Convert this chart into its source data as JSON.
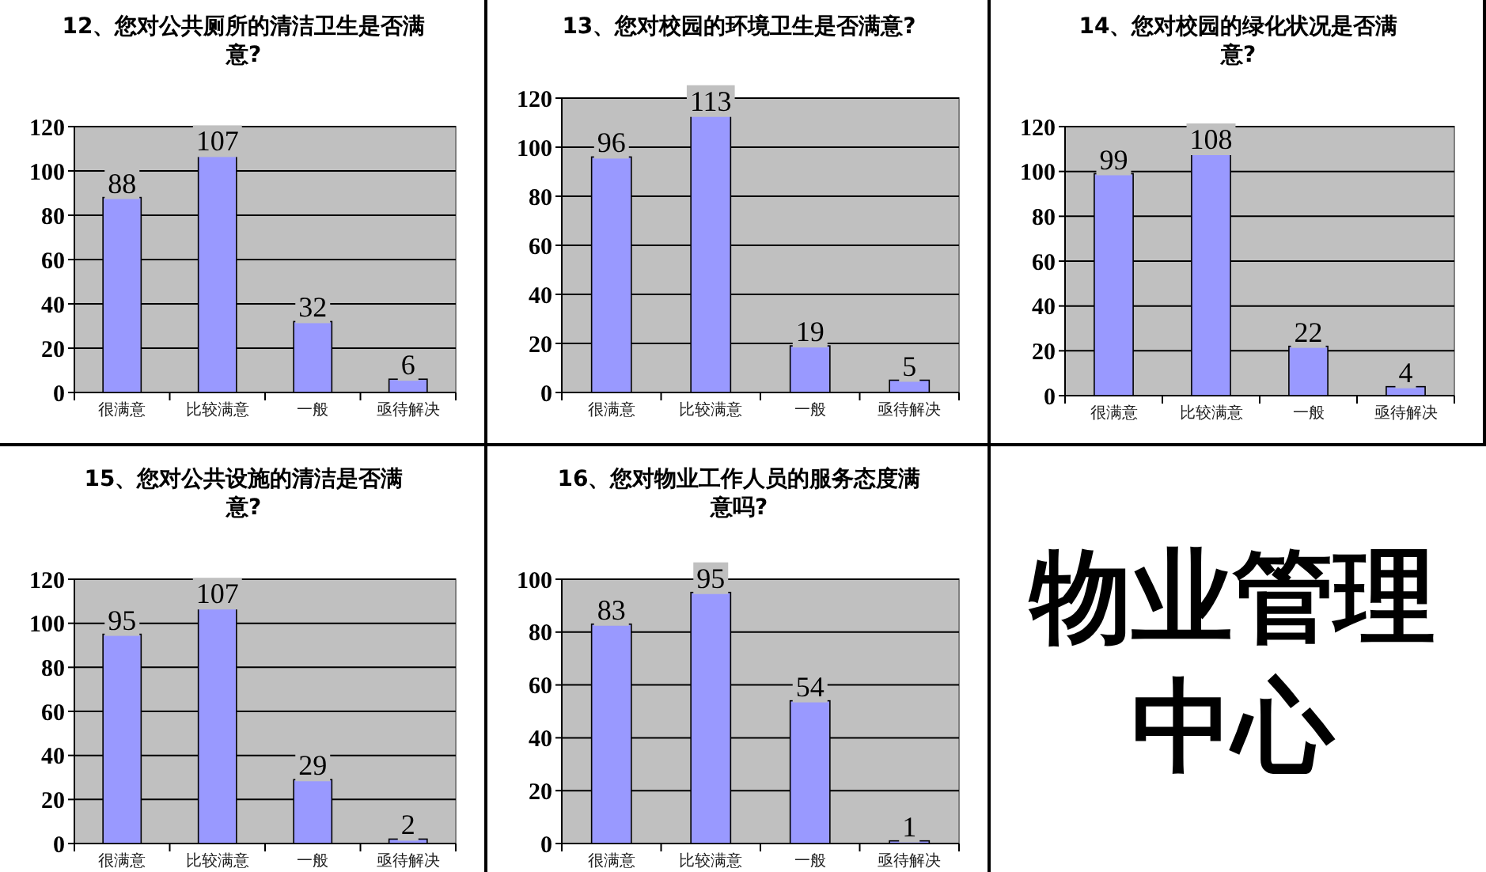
{
  "chart_data": [
    {
      "type": "bar",
      "title": "12、您对公共厕所的清洁卫生是否满意?",
      "categories": [
        "很满意",
        "比较满意",
        "一般",
        "亟待解决"
      ],
      "values": [
        88,
        107,
        32,
        6
      ],
      "color": "#9999ff",
      "ylim": [
        0,
        120
      ],
      "yticks": [
        0,
        20,
        40,
        60,
        80,
        100,
        120
      ],
      "grid": "y",
      "data_labels": true
    },
    {
      "type": "bar",
      "title": "13、您对校园的环境卫生是否满意?",
      "categories": [
        "很满意",
        "比较满意",
        "一般",
        "亟待解决"
      ],
      "values": [
        96,
        113,
        19,
        5
      ],
      "color": "#9999ff",
      "ylim": [
        0,
        120
      ],
      "yticks": [
        0,
        20,
        40,
        60,
        80,
        100,
        120
      ],
      "grid": "y",
      "data_labels": true
    },
    {
      "type": "bar",
      "title": "14、您对校园的绿化状况是否满意?",
      "categories": [
        "很满意",
        "比较满意",
        "一般",
        "亟待解决"
      ],
      "values": [
        99,
        108,
        22,
        4
      ],
      "color": "#9999ff",
      "ylim": [
        0,
        120
      ],
      "yticks": [
        0,
        20,
        40,
        60,
        80,
        100,
        120
      ],
      "grid": "y",
      "data_labels": true
    },
    {
      "type": "bar",
      "title": "15、您对公共设施的清洁是否满意?",
      "categories": [
        "很满意",
        "比较满意",
        "一般",
        "亟待解决"
      ],
      "values": [
        95,
        107,
        29,
        2
      ],
      "color": "#9999ff",
      "ylim": [
        0,
        120
      ],
      "yticks": [
        0,
        20,
        40,
        60,
        80,
        100,
        120
      ],
      "grid": "y",
      "data_labels": true
    },
    {
      "type": "bar",
      "title": "16、您对物业工作人员的服务态度满意吗?",
      "categories": [
        "很满意",
        "比较满意",
        "一般",
        "亟待解决"
      ],
      "values": [
        83,
        95,
        54,
        1
      ],
      "color": "#9999ff",
      "ylim": [
        0,
        100
      ],
      "yticks": [
        0,
        20,
        40,
        60,
        80,
        100
      ],
      "grid": "y",
      "data_labels": true
    },
    {
      "type": "other",
      "title": "物业管理中心"
    }
  ]
}
